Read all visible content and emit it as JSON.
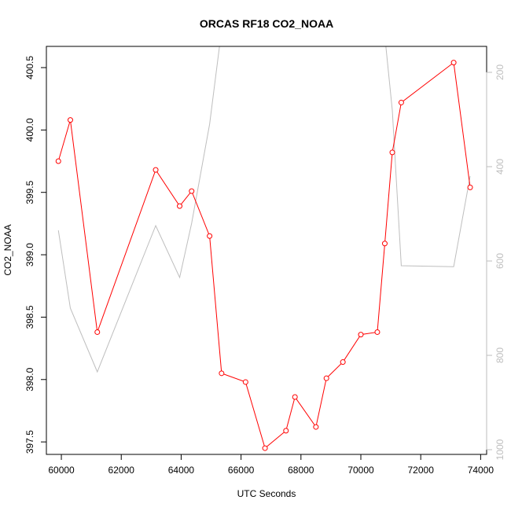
{
  "chart_data": {
    "type": "line",
    "title": "ORCAS RF18 CO2_NOAA",
    "xlabel": "UTC Seconds",
    "ylabel": "CO2_NOAA",
    "xlim": [
      59500,
      74200
    ],
    "ylim": [
      397.4,
      400.67
    ],
    "x_ticks": [
      60000,
      62000,
      64000,
      66000,
      68000,
      70000,
      72000,
      74000
    ],
    "y_ticks": [
      397.5,
      398.0,
      398.5,
      399.0,
      399.5,
      400.0,
      400.5
    ],
    "y_tick_labels": [
      "397.5",
      "398.0",
      "398.5",
      "399.0",
      "399.5",
      "400.0",
      "400.5"
    ],
    "y2_axis": {
      "ylim": [
        1010,
        145
      ],
      "ticks": [
        200,
        400,
        600,
        800,
        1000
      ],
      "color": "#bebebe",
      "reversed": true
    },
    "series": [
      {
        "axis": "left",
        "color": "#ff0000",
        "markers": true,
        "x": [
          59900,
          60300,
          61200,
          63150,
          63950,
          64350,
          64950,
          65350,
          66150,
          66800,
          67500,
          67800,
          68500,
          68850,
          69400,
          70000,
          70550,
          70800,
          71050,
          71350,
          73100,
          73650
        ],
        "y": [
          399.75,
          400.08,
          398.38,
          399.68,
          399.39,
          399.51,
          399.15,
          398.05,
          397.98,
          397.45,
          397.59,
          397.86,
          397.62,
          398.01,
          398.14,
          398.36,
          398.38,
          399.09,
          399.82,
          400.22,
          400.54,
          399.54
        ]
      },
      {
        "axis": "right",
        "color": "#bebebe",
        "markers": false,
        "x": [
          59900,
          60300,
          61200,
          63150,
          63950,
          64350,
          64950,
          65350,
          65700,
          66000,
          66400,
          66850,
          67300,
          67800,
          68200,
          68850,
          69100,
          69600,
          70200,
          70700,
          71050,
          71350,
          73100,
          73650
        ],
        "y": [
          535,
          700,
          835,
          525,
          635,
          520,
          310,
          110,
          40,
          70,
          60,
          130,
          40,
          125,
          60,
          125,
          60,
          55,
          60,
          60,
          280,
          610,
          612,
          420
        ]
      }
    ]
  }
}
